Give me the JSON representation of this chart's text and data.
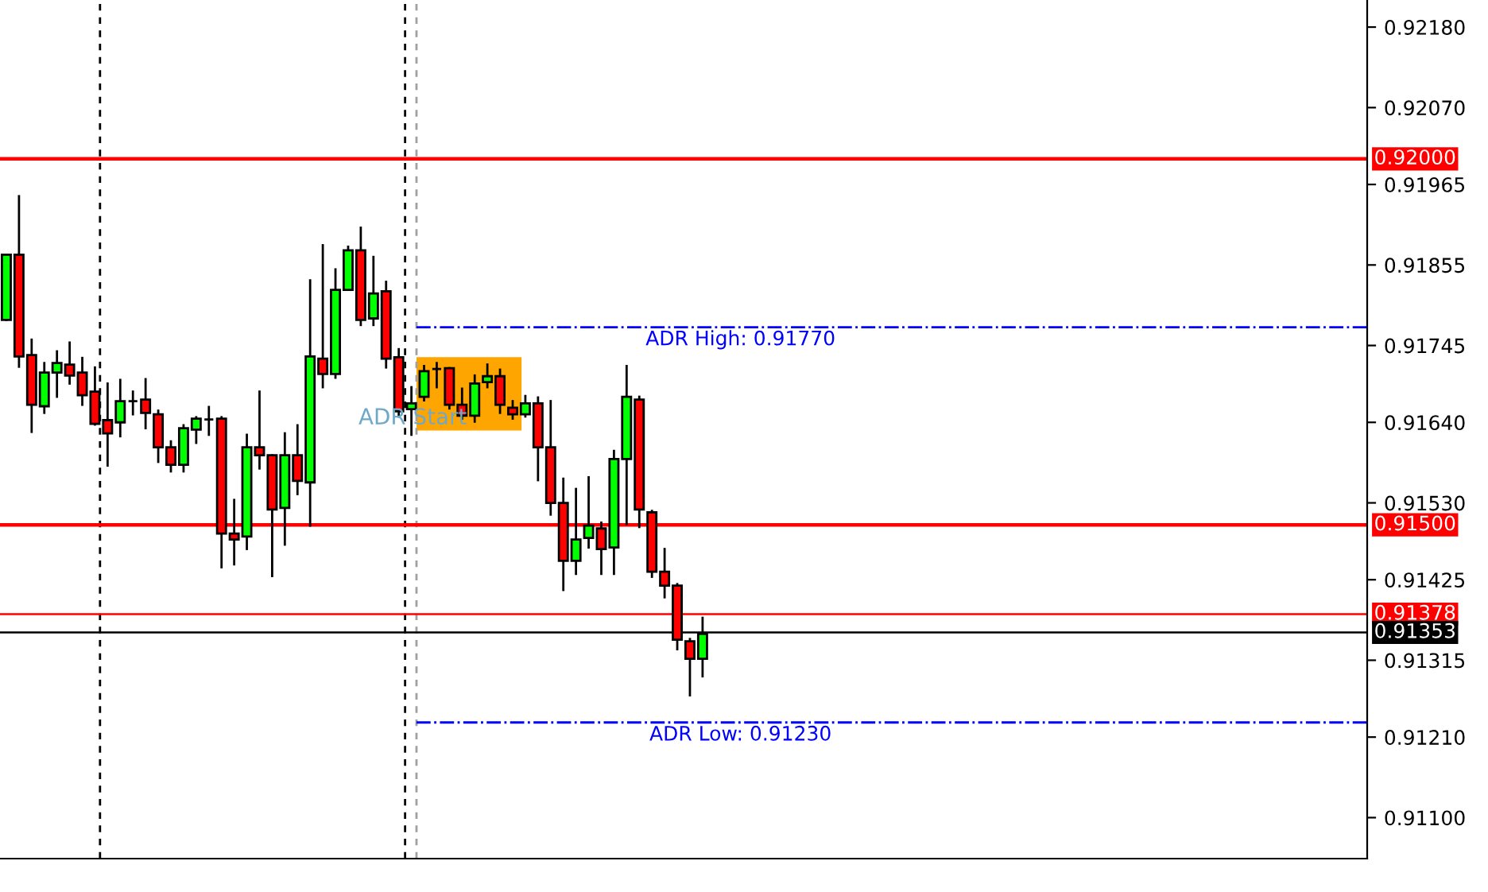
{
  "chart_data": {
    "type": "candlestick",
    "categories": [
      null,
      null,
      null,
      null,
      null,
      null,
      null,
      null,
      null,
      null,
      null,
      null,
      null,
      null,
      null,
      null,
      null,
      null,
      null,
      null,
      null,
      null,
      null,
      null,
      null,
      null,
      null,
      null,
      null,
      null,
      null,
      null,
      null,
      null,
      null,
      null,
      null,
      null,
      null,
      null,
      null,
      null,
      null,
      null,
      null,
      null,
      null,
      null,
      null,
      null,
      null,
      null,
      null,
      null,
      null,
      null,
      null,
      null,
      null,
      null,
      null,
      null,
      null,
      null,
      null,
      null,
      null,
      null,
      null,
      null,
      null,
      null,
      null,
      null,
      null,
      null,
      null,
      null,
      null,
      null,
      null,
      null,
      null,
      null,
      null,
      null,
      null,
      null,
      null,
      null,
      null,
      null,
      null,
      null,
      null,
      null,
      null,
      null,
      null,
      null,
      null,
      null,
      null,
      null,
      null,
      null,
      null,
      null
    ],
    "ohlc": [
      [
        0.9178,
        0.91869,
        0.9178,
        0.91869
      ],
      [
        0.91869,
        0.91949,
        0.91716,
        0.9173
      ],
      [
        0.91732,
        0.91753,
        0.91627,
        0.91664
      ],
      [
        0.91662,
        0.91721,
        0.91653,
        0.91708
      ],
      [
        0.91708,
        0.91737,
        0.91675,
        0.91721
      ],
      [
        0.91719,
        0.91749,
        0.91693,
        0.91704
      ],
      [
        0.91708,
        0.91728,
        0.91664,
        0.91677
      ],
      [
        0.91682,
        0.91715,
        0.91637,
        0.91638
      ],
      [
        0.91643,
        0.91693,
        0.91581,
        0.91625
      ],
      [
        0.9164,
        0.91698,
        0.91621,
        0.91669
      ],
      [
        0.91669,
        0.91682,
        0.91651,
        0.91669
      ],
      [
        0.91671,
        0.91699,
        0.91632,
        0.91653
      ],
      [
        0.91651,
        0.91656,
        0.91586,
        0.91606
      ],
      [
        0.91606,
        0.91614,
        0.91573,
        0.91582
      ],
      [
        0.91582,
        0.91636,
        0.91573,
        0.91632
      ],
      [
        0.9163,
        0.91647,
        0.91612,
        0.91645
      ],
      [
        0.91644,
        0.91661,
        0.91623,
        0.91644
      ],
      [
        0.91645,
        0.91647,
        0.91442,
        0.91488
      ],
      [
        0.91488,
        0.91534,
        0.91446,
        0.9148
      ],
      [
        0.91484,
        0.91623,
        0.91467,
        0.91606
      ],
      [
        0.91606,
        0.91682,
        0.91577,
        0.91595
      ],
      [
        0.91595,
        0.91595,
        0.9143,
        0.91521
      ],
      [
        0.91523,
        0.91625,
        0.91473,
        0.91595
      ],
      [
        0.91595,
        0.91636,
        0.91542,
        0.9156
      ],
      [
        0.91558,
        0.91834,
        0.91499,
        0.9173
      ],
      [
        0.91727,
        0.91882,
        0.91688,
        0.91706
      ],
      [
        0.91706,
        0.91849,
        0.91701,
        0.91821
      ],
      [
        0.91821,
        0.9188,
        0.91821,
        0.91875
      ],
      [
        0.91875,
        0.91906,
        0.91773,
        0.9178
      ],
      [
        0.91782,
        0.91866,
        0.91773,
        0.91816
      ],
      [
        0.91819,
        0.91832,
        0.91715,
        0.91727
      ],
      [
        0.91729,
        0.9174,
        0.91648,
        0.91655
      ],
      [
        0.91658,
        0.91688,
        0.91623,
        0.91666
      ],
      [
        0.91675,
        0.91717,
        0.9167,
        0.9171
      ],
      [
        0.91713,
        0.91721,
        0.91688,
        0.91713
      ],
      [
        0.91714,
        0.91714,
        0.91659,
        0.91664
      ],
      [
        0.91664,
        0.91686,
        0.91645,
        0.91649
      ],
      [
        0.91649,
        0.91704,
        0.91641,
        0.91693
      ],
      [
        0.91695,
        0.91719,
        0.91688,
        0.91703
      ],
      [
        0.91703,
        0.91712,
        0.91653,
        0.91664
      ],
      [
        0.9166,
        0.91669,
        0.91645,
        0.91651
      ],
      [
        0.91651,
        0.91676,
        0.91648,
        0.91666
      ],
      [
        0.91666,
        0.91674,
        0.91561,
        0.91606
      ],
      [
        0.91606,
        0.91669,
        0.91514,
        0.9153
      ],
      [
        0.9153,
        0.91563,
        0.91411,
        0.91451
      ],
      [
        0.91451,
        0.91549,
        0.91433,
        0.9148
      ],
      [
        0.91482,
        0.91565,
        0.91469,
        0.91499
      ],
      [
        0.91495,
        0.91503,
        0.91433,
        0.91467
      ],
      [
        0.91469,
        0.91601,
        0.91433,
        0.9159
      ],
      [
        0.9159,
        0.91717,
        0.91501,
        0.91675
      ],
      [
        0.91671,
        0.91675,
        0.91497,
        0.91521
      ],
      [
        0.91517,
        0.91519,
        0.91429,
        0.91436
      ],
      [
        0.91436,
        0.91467,
        0.91401,
        0.91417
      ],
      [
        0.91417,
        0.91419,
        0.9133,
        0.91343
      ],
      [
        0.91341,
        0.91344,
        0.91267,
        0.91317
      ],
      [
        0.91317,
        0.91373,
        0.91293,
        0.91351
      ],
      null,
      null,
      null,
      null,
      null,
      null,
      null,
      null,
      null,
      null,
      null,
      null,
      null,
      null,
      null,
      null,
      null,
      null,
      null,
      null,
      null,
      null,
      null,
      null,
      null,
      null,
      null,
      null,
      null,
      null,
      null,
      null,
      null,
      null,
      null,
      null,
      null,
      null,
      null,
      null,
      null,
      null,
      null,
      null,
      null,
      null,
      null,
      null,
      null,
      null,
      null,
      null
    ],
    "colors": [
      "#00ff00",
      "#ff0000",
      "#ff0000",
      "#00ff00",
      "#00ff00",
      "#ff0000",
      "#ff0000",
      "#ff0000",
      "#ff0000",
      "#00ff00",
      "#000000",
      "#ff0000",
      "#ff0000",
      "#ff0000",
      "#00ff00",
      "#00ff00",
      "#000000",
      "#ff0000",
      "#ff0000",
      "#00ff00",
      "#ff0000",
      "#ff0000",
      "#00ff00",
      "#ff0000",
      "#00ff00",
      "#ff0000",
      "#00ff00",
      "#00ff00",
      "#ff0000",
      "#00ff00",
      "#ff0000",
      "#ff0000",
      "#00ff00",
      "#00ff00",
      "#000000",
      "#ff0000",
      "#ff0000",
      "#00ff00",
      "#00ff00",
      "#ff0000",
      "#ff0000",
      "#00ff00",
      "#ff0000",
      "#ff0000",
      "#ff0000",
      "#00ff00",
      "#00ff00",
      "#ff0000",
      "#00ff00",
      "#00ff00",
      "#ff0000",
      "#ff0000",
      "#ff0000",
      "#ff0000",
      "#ff0000",
      "#00ff00",
      null,
      null,
      null,
      null,
      null,
      null,
      null,
      null,
      null,
      null,
      null,
      null,
      null,
      null,
      null,
      null,
      null,
      null,
      null,
      null,
      null,
      null,
      null,
      null,
      null,
      null,
      null,
      null,
      null,
      null,
      null,
      null,
      null,
      null,
      null,
      null,
      null,
      null,
      null,
      null,
      null,
      null,
      null,
      null,
      null,
      null,
      null,
      null,
      null,
      null,
      null,
      null
    ],
    "ylim": [
      0.91044,
      0.92217
    ],
    "yticks": [
      {
        "value": 0.9218,
        "label": "0.92180"
      },
      {
        "value": 0.9207,
        "label": "0.92070"
      },
      {
        "value": 0.91965,
        "label": "0.91965"
      },
      {
        "value": 0.91855,
        "label": "0.91855"
      },
      {
        "value": 0.91745,
        "label": "0.91745"
      },
      {
        "value": 0.9164,
        "label": "0.91640"
      },
      {
        "value": 0.9153,
        "label": "0.91530"
      },
      {
        "value": 0.91425,
        "label": "0.91425"
      },
      {
        "value": 0.91315,
        "label": "0.91315"
      },
      {
        "value": 0.9121,
        "label": "0.91210"
      },
      {
        "value": 0.911,
        "label": "0.91100"
      }
    ],
    "tick_labels": "y",
    "grid": false,
    "ref_lines": [
      {
        "axis": "y",
        "value": 0.92,
        "label": "0.92000",
        "color": "#ff0000",
        "line_style": "solid"
      },
      {
        "axis": "y",
        "value": 0.915,
        "label": "0.91500",
        "color": "#ff0000",
        "line_style": "solid"
      },
      {
        "axis": "y",
        "value": 0.91378,
        "label": "0.91378",
        "color": "#ff0000",
        "line_style": "solid"
      },
      {
        "axis": "y",
        "value": 0.91353,
        "label": "0.91353",
        "color": "#000000",
        "line_style": "solid"
      },
      {
        "axis": "y",
        "value": 0.9177,
        "label": "ADR High: 0.91770",
        "color": "#0000ff",
        "line_style": "dotted"
      },
      {
        "axis": "y",
        "value": 0.9123,
        "label": "ADR Low: 0.91230",
        "color": "#0000ff",
        "line_style": "dotted"
      }
    ],
    "annotations": [
      "ADR Start"
    ]
  }
}
